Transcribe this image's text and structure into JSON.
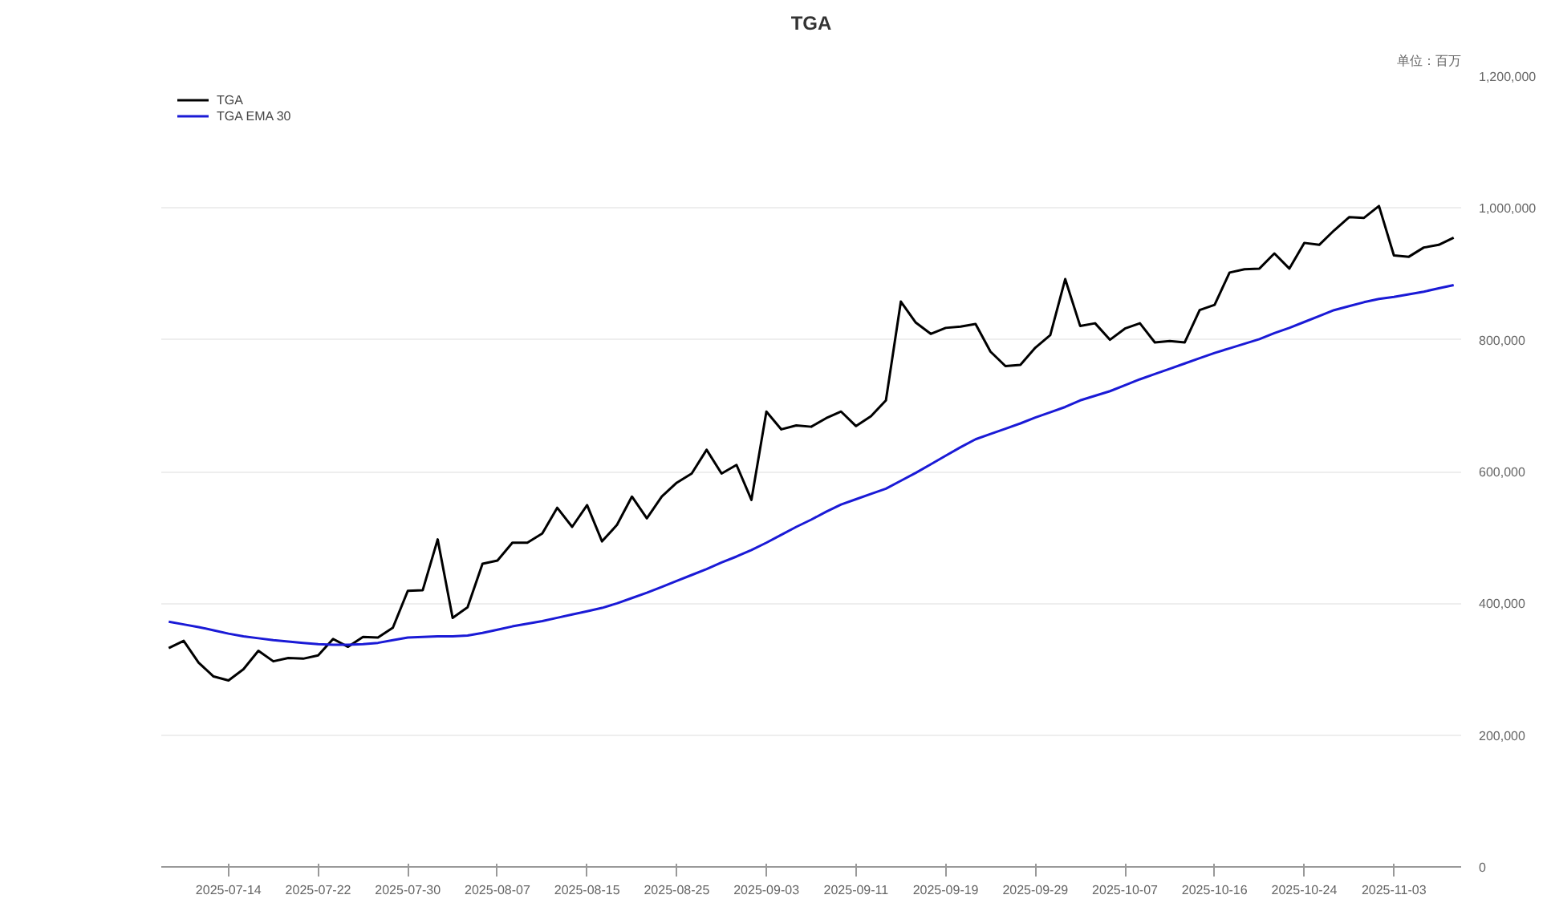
{
  "chart_data": {
    "type": "line",
    "title": "TGA",
    "annotations": [
      "单位：百万"
    ],
    "categories": [
      null,
      null,
      null,
      null,
      "2025-07-14",
      null,
      null,
      null,
      null,
      null,
      "2025-07-22",
      null,
      null,
      null,
      null,
      null,
      "2025-07-30",
      null,
      null,
      null,
      null,
      null,
      "2025-08-07",
      null,
      null,
      null,
      null,
      null,
      "2025-08-15",
      null,
      null,
      null,
      null,
      null,
      "2025-08-25",
      null,
      null,
      null,
      null,
      null,
      "2025-09-03",
      null,
      null,
      null,
      null,
      null,
      "2025-09-11",
      null,
      null,
      null,
      null,
      null,
      "2025-09-19",
      null,
      null,
      null,
      null,
      null,
      "2025-09-29",
      null,
      null,
      null,
      null,
      null,
      "2025-10-07",
      null,
      null,
      null,
      null,
      null,
      "2025-10-16",
      null,
      null,
      null,
      null,
      null,
      "2025-10-24",
      null,
      null,
      null,
      null,
      null,
      "2025-11-03",
      null,
      null,
      null,
      null
    ],
    "series": [
      {
        "name": "TGA",
        "color": "#000000",
        "values": [
          332000,
          343000,
          310000,
          289000,
          283000,
          300000,
          328000,
          312000,
          317000,
          316000,
          321000,
          346000,
          334000,
          349000,
          348000,
          363000,
          419000,
          420000,
          497000,
          378000,
          394000,
          460000,
          465000,
          492000,
          492000,
          506000,
          545000,
          516000,
          549000,
          494000,
          519000,
          562000,
          529000,
          562000,
          583000,
          597000,
          633000,
          597000,
          610000,
          557000,
          691000,
          664000,
          670000,
          668000,
          681000,
          691000,
          669000,
          684000,
          708000,
          858000,
          826000,
          809000,
          818000,
          820000,
          824000,
          782000,
          760000,
          762000,
          788000,
          807000,
          892000,
          821000,
          825000,
          800000,
          817000,
          825000,
          796000,
          798000,
          796000,
          845000,
          853000,
          902000,
          907000,
          908000,
          931000,
          908000,
          947000,
          944000,
          966000,
          986000,
          985000,
          1003000,
          928000,
          926000,
          940000,
          944000,
          955000
        ]
      },
      {
        "name": "TGA EMA 30",
        "color": "#1a1ad6",
        "values": [
          372000,
          368000,
          364000,
          359000,
          354000,
          350000,
          347000,
          344000,
          342000,
          340000,
          338000,
          337000,
          337000,
          338000,
          340000,
          344000,
          348000,
          349000,
          350000,
          350000,
          351000,
          355000,
          360000,
          365000,
          369000,
          373000,
          378000,
          383000,
          388000,
          393000,
          400000,
          408000,
          416000,
          425000,
          434000,
          443000,
          452000,
          462000,
          471000,
          481000,
          492000,
          504000,
          516000,
          527000,
          539000,
          550000,
          558000,
          566000,
          574000,
          586000,
          598000,
          611000,
          624000,
          637000,
          649000,
          657000,
          665000,
          673000,
          682000,
          690000,
          698000,
          708000,
          715000,
          722000,
          731000,
          740000,
          748000,
          756000,
          764000,
          772000,
          780000,
          787000,
          794000,
          801000,
          810000,
          818000,
          827000,
          836000,
          845000,
          851000,
          857000,
          862000,
          865000,
          869000,
          873000,
          878000,
          883000
        ]
      }
    ],
    "ylim": [
      0,
      1200000
    ],
    "yticks": [
      0,
      {
        "value": 200000,
        "label": "200,000"
      },
      {
        "value": 400000,
        "label": "400,000"
      },
      {
        "value": 600000,
        "label": "600,000"
      },
      {
        "value": 800000,
        "label": "800,000"
      },
      {
        "value": 1000000,
        "label": "1,000,000"
      },
      {
        "value": 1200000,
        "label": "1,200,000"
      }
    ],
    "grid": "y",
    "legend": "top left"
  }
}
